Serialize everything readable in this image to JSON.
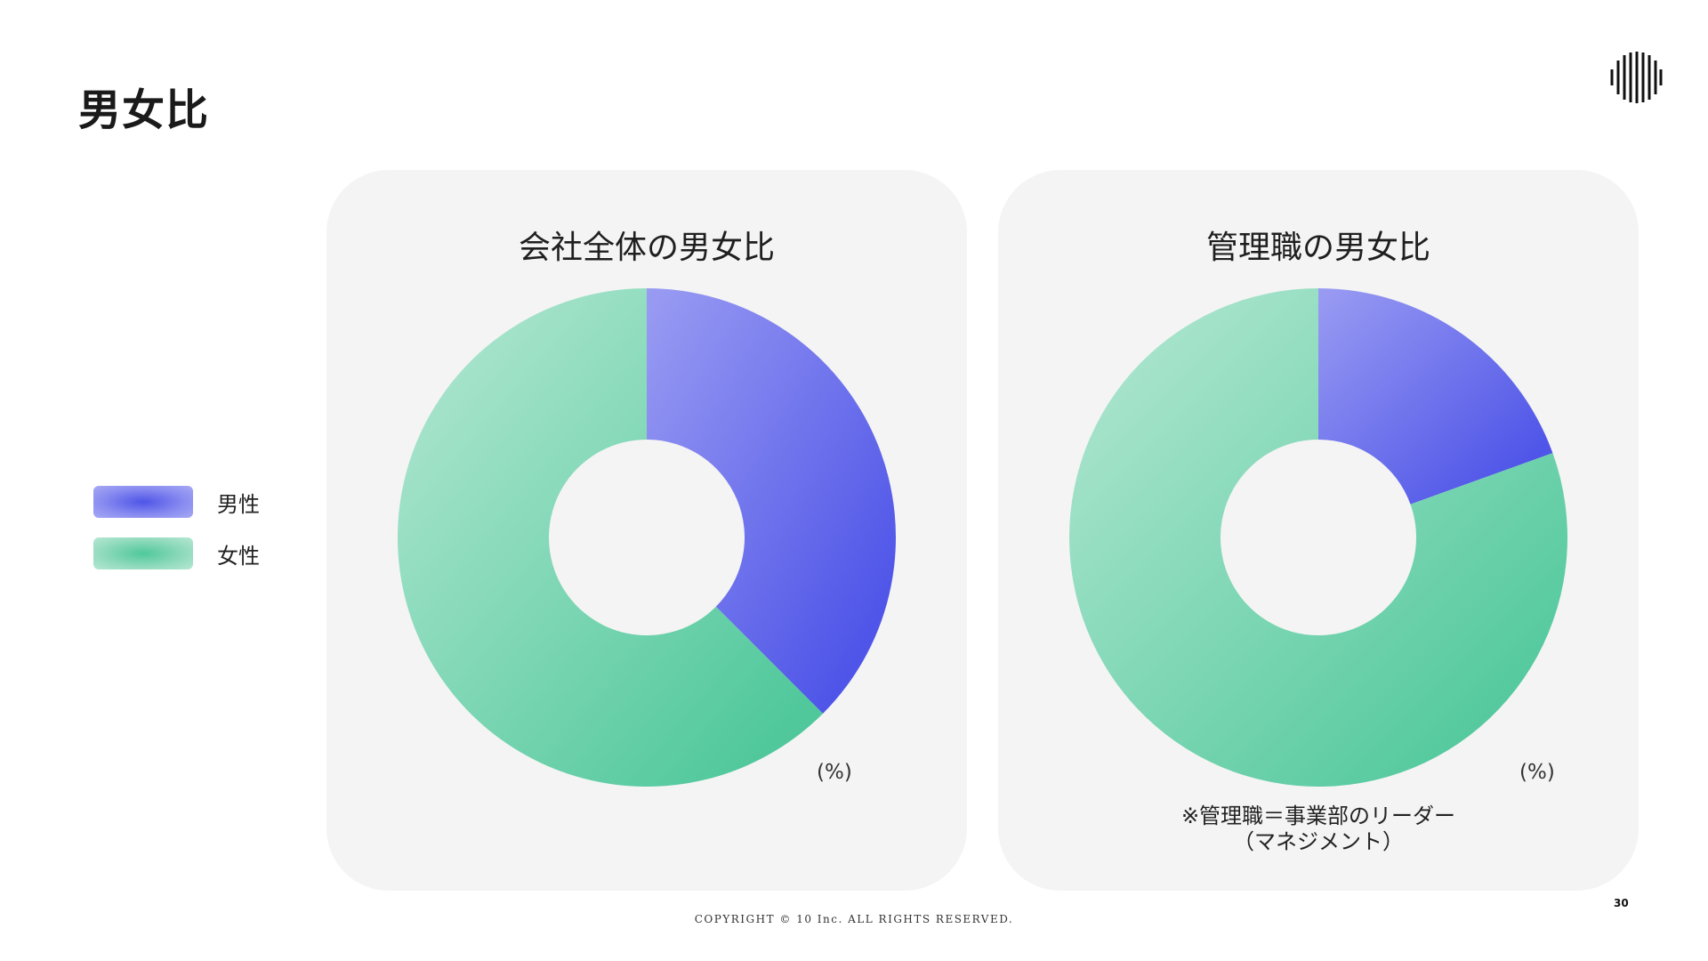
{
  "page": {
    "title": "男女比",
    "copyright": "COPYRIGHT © 10 Inc. ALL RIGHTS RESERVED.",
    "page_number": "30",
    "logo_icon": "vertical-stripes-circle-logo"
  },
  "legend": [
    {
      "label": "男性",
      "color": "#5055e8"
    },
    {
      "label": "女性",
      "color": "#55c89e"
    }
  ],
  "colors": {
    "male_dark": "#4f55e8",
    "male_light": "#9a9cf2",
    "female_dark": "#50c89b",
    "female_light": "#b6e8d4",
    "card_bg": "#f4f4f4"
  },
  "chart_data": [
    {
      "type": "pie",
      "title": "会社全体の男女比",
      "unit": "(%)",
      "categories": [
        "男性",
        "女性"
      ],
      "values": [
        37.5,
        62.5
      ]
    },
    {
      "type": "pie",
      "title": "管理職の男女比",
      "unit": "(%)",
      "categories": [
        "男性",
        "女性"
      ],
      "values": [
        19.5,
        80.5
      ],
      "footnote": [
        "※管理職＝事業部のリーダー",
        "（マネジメント）"
      ]
    }
  ]
}
